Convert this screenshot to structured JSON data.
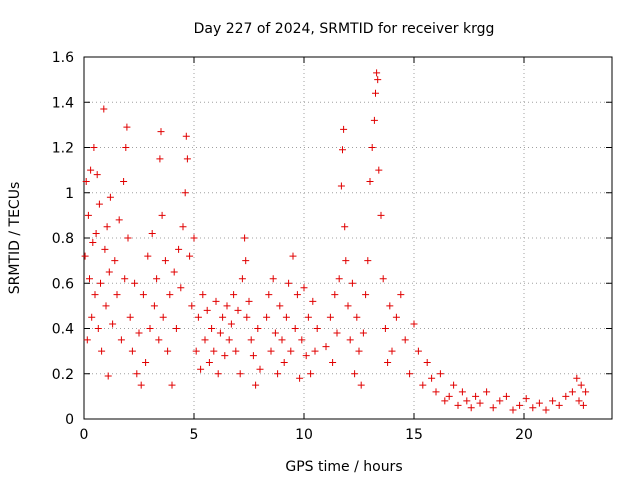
{
  "chart_data": {
    "type": "scatter",
    "title": "Day 227 of 2024, SRMTID for receiver krgg",
    "xlabel": "GPS time / hours",
    "ylabel": "SRMTID / TECUs",
    "xlim": [
      0,
      24
    ],
    "ylim": [
      0,
      1.6
    ],
    "xticks": [
      0,
      5,
      10,
      15,
      20
    ],
    "xtick_labels": [
      "0",
      "5",
      "10",
      "15",
      "20"
    ],
    "yticks": [
      0,
      0.2,
      0.4,
      0.6,
      0.8,
      1.0,
      1.2,
      1.4,
      1.6
    ],
    "ytick_labels": [
      "0",
      "0.2",
      "0.4",
      "0.6",
      "0.8",
      "1",
      "1.2",
      "1.4",
      "1.6"
    ],
    "grid": true,
    "legend": "none",
    "marker": "+",
    "color": "#e00000",
    "series": [
      {
        "name": "SRMTID",
        "points": [
          [
            0.05,
            0.72
          ],
          [
            0.1,
            1.05
          ],
          [
            0.15,
            0.35
          ],
          [
            0.2,
            0.9
          ],
          [
            0.25,
            0.62
          ],
          [
            0.3,
            1.1
          ],
          [
            0.35,
            0.45
          ],
          [
            0.4,
            0.78
          ],
          [
            0.45,
            1.2
          ],
          [
            0.5,
            0.55
          ],
          [
            0.55,
            0.82
          ],
          [
            0.6,
            1.08
          ],
          [
            0.65,
            0.4
          ],
          [
            0.7,
            0.95
          ],
          [
            0.75,
            0.6
          ],
          [
            0.8,
            0.3
          ],
          [
            0.9,
            1.37
          ],
          [
            0.95,
            0.75
          ],
          [
            1.0,
            0.5
          ],
          [
            1.05,
            0.85
          ],
          [
            1.1,
            0.19
          ],
          [
            1.15,
            0.65
          ],
          [
            1.2,
            0.98
          ],
          [
            1.3,
            0.42
          ],
          [
            1.4,
            0.7
          ],
          [
            1.5,
            0.55
          ],
          [
            1.6,
            0.88
          ],
          [
            1.7,
            0.35
          ],
          [
            1.8,
            1.05
          ],
          [
            1.85,
            0.62
          ],
          [
            1.9,
            1.2
          ],
          [
            1.95,
            1.29
          ],
          [
            2.0,
            0.8
          ],
          [
            2.1,
            0.45
          ],
          [
            2.2,
            0.3
          ],
          [
            2.3,
            0.6
          ],
          [
            2.4,
            0.2
          ],
          [
            2.5,
            0.38
          ],
          [
            2.6,
            0.15
          ],
          [
            2.7,
            0.55
          ],
          [
            2.8,
            0.25
          ],
          [
            2.9,
            0.72
          ],
          [
            3.0,
            0.4
          ],
          [
            3.1,
            0.82
          ],
          [
            3.2,
            0.5
          ],
          [
            3.3,
            0.62
          ],
          [
            3.4,
            0.35
          ],
          [
            3.45,
            1.15
          ],
          [
            3.5,
            1.27
          ],
          [
            3.55,
            0.9
          ],
          [
            3.6,
            0.45
          ],
          [
            3.7,
            0.7
          ],
          [
            3.8,
            0.3
          ],
          [
            3.9,
            0.55
          ],
          [
            4.0,
            0.15
          ],
          [
            4.1,
            0.65
          ],
          [
            4.2,
            0.4
          ],
          [
            4.3,
            0.75
          ],
          [
            4.4,
            0.58
          ],
          [
            4.5,
            0.85
          ],
          [
            4.6,
            1.0
          ],
          [
            4.65,
            1.25
          ],
          [
            4.7,
            1.15
          ],
          [
            4.8,
            0.72
          ],
          [
            4.9,
            0.5
          ],
          [
            5.0,
            0.8
          ],
          [
            5.1,
            0.3
          ],
          [
            5.2,
            0.45
          ],
          [
            5.3,
            0.22
          ],
          [
            5.4,
            0.55
          ],
          [
            5.5,
            0.35
          ],
          [
            5.6,
            0.48
          ],
          [
            5.7,
            0.25
          ],
          [
            5.8,
            0.4
          ],
          [
            5.9,
            0.3
          ],
          [
            6.0,
            0.52
          ],
          [
            6.1,
            0.2
          ],
          [
            6.2,
            0.38
          ],
          [
            6.3,
            0.45
          ],
          [
            6.4,
            0.28
          ],
          [
            6.5,
            0.5
          ],
          [
            6.6,
            0.35
          ],
          [
            6.7,
            0.42
          ],
          [
            6.8,
            0.55
          ],
          [
            6.9,
            0.3
          ],
          [
            7.0,
            0.48
          ],
          [
            7.1,
            0.2
          ],
          [
            7.2,
            0.62
          ],
          [
            7.3,
            0.8
          ],
          [
            7.35,
            0.7
          ],
          [
            7.4,
            0.45
          ],
          [
            7.5,
            0.52
          ],
          [
            7.6,
            0.35
          ],
          [
            7.7,
            0.28
          ],
          [
            7.8,
            0.15
          ],
          [
            7.9,
            0.4
          ],
          [
            8.0,
            0.22
          ],
          [
            8.3,
            0.45
          ],
          [
            8.4,
            0.55
          ],
          [
            8.5,
            0.3
          ],
          [
            8.6,
            0.62
          ],
          [
            8.7,
            0.38
          ],
          [
            8.8,
            0.2
          ],
          [
            8.9,
            0.5
          ],
          [
            9.0,
            0.35
          ],
          [
            9.1,
            0.25
          ],
          [
            9.2,
            0.45
          ],
          [
            9.3,
            0.6
          ],
          [
            9.4,
            0.3
          ],
          [
            9.5,
            0.72
          ],
          [
            9.6,
            0.4
          ],
          [
            9.7,
            0.55
          ],
          [
            9.8,
            0.18
          ],
          [
            9.9,
            0.35
          ],
          [
            10.0,
            0.58
          ],
          [
            10.1,
            0.28
          ],
          [
            10.2,
            0.45
          ],
          [
            10.3,
            0.2
          ],
          [
            10.4,
            0.52
          ],
          [
            10.5,
            0.3
          ],
          [
            10.6,
            0.4
          ],
          [
            11.0,
            0.32
          ],
          [
            11.2,
            0.45
          ],
          [
            11.3,
            0.25
          ],
          [
            11.4,
            0.55
          ],
          [
            11.5,
            0.38
          ],
          [
            11.6,
            0.62
          ],
          [
            11.7,
            1.03
          ],
          [
            11.75,
            1.19
          ],
          [
            11.8,
            1.28
          ],
          [
            11.85,
            0.85
          ],
          [
            11.9,
            0.7
          ],
          [
            12.0,
            0.5
          ],
          [
            12.1,
            0.35
          ],
          [
            12.2,
            0.6
          ],
          [
            12.3,
            0.2
          ],
          [
            12.4,
            0.45
          ],
          [
            12.5,
            0.3
          ],
          [
            12.6,
            0.15
          ],
          [
            12.7,
            0.38
          ],
          [
            12.8,
            0.55
          ],
          [
            12.9,
            0.7
          ],
          [
            13.0,
            1.05
          ],
          [
            13.1,
            1.2
          ],
          [
            13.2,
            1.32
          ],
          [
            13.25,
            1.44
          ],
          [
            13.3,
            1.53
          ],
          [
            13.35,
            1.5
          ],
          [
            13.4,
            1.1
          ],
          [
            13.5,
            0.9
          ],
          [
            13.6,
            0.62
          ],
          [
            13.7,
            0.4
          ],
          [
            13.8,
            0.25
          ],
          [
            13.9,
            0.5
          ],
          [
            14.0,
            0.3
          ],
          [
            14.2,
            0.45
          ],
          [
            14.4,
            0.55
          ],
          [
            14.6,
            0.35
          ],
          [
            14.8,
            0.2
          ],
          [
            15.0,
            0.42
          ],
          [
            15.2,
            0.3
          ],
          [
            15.4,
            0.15
          ],
          [
            15.6,
            0.25
          ],
          [
            15.8,
            0.18
          ],
          [
            16.0,
            0.12
          ],
          [
            16.2,
            0.2
          ],
          [
            16.4,
            0.08
          ],
          [
            16.6,
            0.1
          ],
          [
            16.8,
            0.15
          ],
          [
            17.0,
            0.06
          ],
          [
            17.2,
            0.12
          ],
          [
            17.4,
            0.08
          ],
          [
            17.6,
            0.05
          ],
          [
            17.8,
            0.1
          ],
          [
            18.0,
            0.07
          ],
          [
            18.3,
            0.12
          ],
          [
            18.6,
            0.05
          ],
          [
            18.9,
            0.08
          ],
          [
            19.2,
            0.1
          ],
          [
            19.5,
            0.04
          ],
          [
            19.8,
            0.06
          ],
          [
            20.1,
            0.09
          ],
          [
            20.4,
            0.05
          ],
          [
            20.7,
            0.07
          ],
          [
            21.0,
            0.04
          ],
          [
            21.3,
            0.08
          ],
          [
            21.6,
            0.06
          ],
          [
            21.9,
            0.1
          ],
          [
            22.2,
            0.12
          ],
          [
            22.4,
            0.18
          ],
          [
            22.5,
            0.08
          ],
          [
            22.6,
            0.15
          ],
          [
            22.7,
            0.06
          ],
          [
            22.8,
            0.12
          ]
        ]
      }
    ]
  }
}
